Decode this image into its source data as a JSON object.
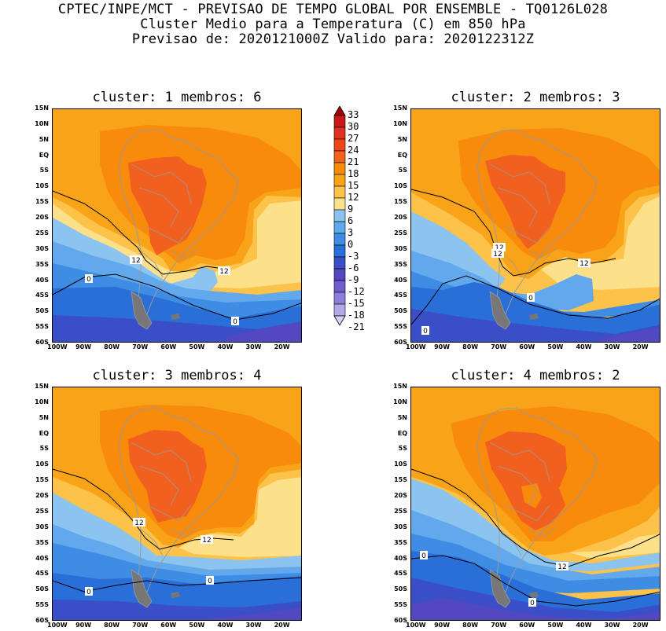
{
  "header": {
    "line1": "CPTEC/INPE/MCT - PREVISAO DE TEMPO GLOBAL POR ENSEMBLE - TQ0126L028",
    "line2": "Cluster Medio para a Temperatura (C) em 850 hPa",
    "line3": "Previsao de: 2020121000Z   Valido para: 2020122312Z"
  },
  "lat_ticks": [
    "15N",
    "10N",
    "5N",
    "EQ",
    "5S",
    "10S",
    "15S",
    "20S",
    "25S",
    "30S",
    "35S",
    "40S",
    "45S",
    "50S",
    "55S",
    "60S"
  ],
  "lon_ticks": [
    "100W",
    "90W",
    "80W",
    "70W",
    "60W",
    "50W",
    "40W",
    "30W",
    "20W"
  ],
  "colorbar": {
    "levels": [
      "33",
      "30",
      "27",
      "24",
      "21",
      "18",
      "15",
      "12",
      "9",
      "6",
      "3",
      "0",
      "-3",
      "-6",
      "-9",
      "-12",
      "-15",
      "-18",
      "-21"
    ],
    "colors": [
      "#a50000",
      "#c81818",
      "#e03020",
      "#f04418",
      "#f26020",
      "#f88a0c",
      "#f9a418",
      "#fcc24a",
      "#fde08a",
      "#8cc4f0",
      "#62a8ec",
      "#3e8ce4",
      "#2a6ed8",
      "#3a4ec8",
      "#5248c0",
      "#6e5ed0",
      "#8c80dc",
      "#b4a8e8",
      "#d8d0f4"
    ]
  },
  "panels": [
    {
      "title": "cluster: 1   membros: 6",
      "labels": [
        "12",
        "12",
        "0",
        "0"
      ]
    },
    {
      "title": "cluster: 2   membros: 3",
      "labels": [
        "12",
        "12",
        "12",
        "0",
        "0"
      ]
    },
    {
      "title": "cluster: 3   membros: 4",
      "labels": [
        "12",
        "12",
        "0",
        "0"
      ]
    },
    {
      "title": "cluster: 4   membros: 2",
      "labels": [
        "12",
        "0",
        "0"
      ]
    }
  ]
}
